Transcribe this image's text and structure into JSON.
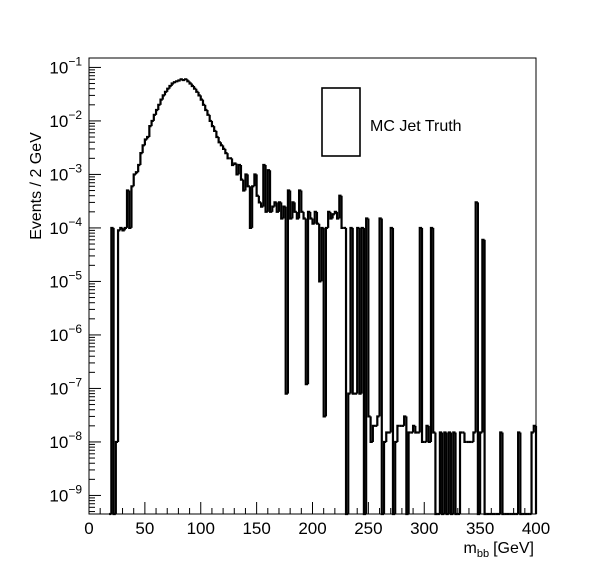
{
  "chart_data": {
    "type": "histogram",
    "xlabel": "m",
    "xlabel_sub": "bb",
    "xlabel_unit": "[GeV]",
    "ylabel": "Events / 2 GeV",
    "xlim": [
      0,
      400
    ],
    "ylim": [
      4.5e-10,
      0.15
    ],
    "y_scale": "log",
    "grid": false,
    "bin_width": 2,
    "x_ticks": [
      0,
      50,
      100,
      150,
      200,
      250,
      300,
      350,
      400
    ],
    "y_tick_exponents": [
      -9,
      -8,
      -7,
      -6,
      -5,
      -4,
      -3,
      -2,
      -1
    ],
    "y_tick_base": "10",
    "legend": {
      "placement": "top-center",
      "entries": [
        {
          "label": "MC Jet Truth",
          "style": "box"
        }
      ]
    },
    "series": [
      {
        "name": "MC Jet Truth",
        "color": "#000000",
        "bins": [
          [
            18,
            20,
            0
          ],
          [
            20,
            22,
            0.0001
          ],
          [
            22,
            24,
            0
          ],
          [
            24,
            26,
            1e-08
          ],
          [
            26,
            28,
            9e-05
          ],
          [
            28,
            30,
            0.0001
          ],
          [
            30,
            32,
            9e-05
          ],
          [
            32,
            34,
            0.0001
          ],
          [
            34,
            36,
            0.0005
          ],
          [
            36,
            38,
            0.0001
          ],
          [
            38,
            40,
            0.0006
          ],
          [
            40,
            42,
            0.001
          ],
          [
            42,
            44,
            0.0011
          ],
          [
            44,
            46,
            0.0015
          ],
          [
            46,
            48,
            0.0025
          ],
          [
            48,
            50,
            0.0035
          ],
          [
            50,
            52,
            0.0045
          ],
          [
            52,
            54,
            0.005
          ],
          [
            54,
            56,
            0.008
          ],
          [
            56,
            58,
            0.01
          ],
          [
            58,
            60,
            0.013
          ],
          [
            60,
            62,
            0.016
          ],
          [
            62,
            64,
            0.02
          ],
          [
            64,
            66,
            0.025
          ],
          [
            66,
            68,
            0.03
          ],
          [
            68,
            70,
            0.035
          ],
          [
            70,
            72,
            0.04
          ],
          [
            72,
            74,
            0.045
          ],
          [
            74,
            76,
            0.05
          ],
          [
            76,
            78,
            0.053
          ],
          [
            78,
            80,
            0.055
          ],
          [
            80,
            82,
            0.057
          ],
          [
            82,
            84,
            0.06
          ],
          [
            84,
            86,
            0.058
          ],
          [
            86,
            88,
            0.06
          ],
          [
            88,
            90,
            0.055
          ],
          [
            90,
            92,
            0.05
          ],
          [
            92,
            94,
            0.045
          ],
          [
            94,
            96,
            0.04
          ],
          [
            96,
            98,
            0.035
          ],
          [
            98,
            100,
            0.03
          ],
          [
            100,
            102,
            0.025
          ],
          [
            102,
            104,
            0.02
          ],
          [
            104,
            106,
            0.016
          ],
          [
            106,
            108,
            0.013
          ],
          [
            108,
            110,
            0.01
          ],
          [
            110,
            112,
            0.008
          ],
          [
            112,
            114,
            0.0065
          ],
          [
            114,
            116,
            0.005
          ],
          [
            116,
            118,
            0.004
          ],
          [
            118,
            120,
            0.0035
          ],
          [
            120,
            122,
            0.003
          ],
          [
            122,
            124,
            0.0025
          ],
          [
            124,
            126,
            0.002
          ],
          [
            126,
            128,
            0.002
          ],
          [
            128,
            130,
            0.0015
          ],
          [
            130,
            132,
            0.0016
          ],
          [
            132,
            134,
            0.001
          ],
          [
            134,
            136,
            0.0015
          ],
          [
            136,
            138,
            0.0008
          ],
          [
            138,
            140,
            0.0005
          ],
          [
            140,
            142,
            0.001
          ],
          [
            142,
            144,
            0.0006
          ],
          [
            144,
            146,
            0.0001
          ],
          [
            146,
            148,
            0.0006
          ],
          [
            148,
            150,
            0.001
          ],
          [
            150,
            152,
            0.0004
          ],
          [
            152,
            154,
            0.0003
          ],
          [
            154,
            156,
            0.00025
          ],
          [
            156,
            158,
            0.0015
          ],
          [
            158,
            160,
            0.0002
          ],
          [
            160,
            162,
            0.0012
          ],
          [
            162,
            164,
            0.0002
          ],
          [
            164,
            166,
            0.00025
          ],
          [
            166,
            168,
            0.0003
          ],
          [
            168,
            170,
            0.0002
          ],
          [
            170,
            172,
            0.0003
          ],
          [
            172,
            174,
            0.00015
          ],
          [
            174,
            176,
            0.00025
          ],
          [
            176,
            178,
            8e-08
          ],
          [
            178,
            180,
            0.0005
          ],
          [
            180,
            182,
            0.00015
          ],
          [
            182,
            184,
            0.0003
          ],
          [
            184,
            186,
            0.0002
          ],
          [
            186,
            188,
            0.00015
          ],
          [
            188,
            190,
            0.0005
          ],
          [
            190,
            192,
            0.0002
          ],
          [
            192,
            194,
            0.00015
          ],
          [
            194,
            196,
            1.2e-07
          ],
          [
            196,
            198,
            0.0002
          ],
          [
            198,
            200,
            0.00015
          ],
          [
            200,
            202,
            0.00012
          ],
          [
            202,
            204,
            0.0002
          ],
          [
            204,
            206,
            0.00012
          ],
          [
            206,
            208,
            1e-05
          ],
          [
            208,
            210,
            0.0001
          ],
          [
            210,
            212,
            3e-08
          ],
          [
            212,
            214,
            0.0001
          ],
          [
            214,
            216,
            0.0002
          ],
          [
            216,
            218,
            0.00015
          ],
          [
            218,
            220,
            0.00018
          ],
          [
            220,
            222,
            0.0002
          ],
          [
            222,
            224,
            0.00015
          ],
          [
            224,
            226,
            0.0004
          ],
          [
            226,
            228,
            0.0001
          ],
          [
            228,
            230,
            0.0001
          ],
          [
            230,
            232,
            0
          ],
          [
            232,
            234,
            8e-08
          ],
          [
            234,
            236,
            0.0001
          ],
          [
            236,
            238,
            8e-08
          ],
          [
            238,
            240,
            8e-08
          ],
          [
            240,
            242,
            0.0001
          ],
          [
            242,
            244,
            8e-08
          ],
          [
            244,
            246,
            0.0001
          ],
          [
            246,
            248,
            0
          ],
          [
            248,
            250,
            0.00015
          ],
          [
            250,
            252,
            3e-08
          ],
          [
            252,
            254,
            1e-08
          ],
          [
            254,
            256,
            2e-08
          ],
          [
            256,
            258,
            2e-08
          ],
          [
            258,
            260,
            3e-08
          ],
          [
            260,
            262,
            0.00015
          ],
          [
            262,
            264,
            0
          ],
          [
            264,
            266,
            1e-08
          ],
          [
            266,
            268,
            1.5e-08
          ],
          [
            268,
            270,
            1.5e-08
          ],
          [
            270,
            272,
            0.0001
          ],
          [
            272,
            274,
            0
          ],
          [
            274,
            276,
            1e-08
          ],
          [
            276,
            278,
            2e-08
          ],
          [
            278,
            280,
            2e-08
          ],
          [
            280,
            282,
            2e-08
          ],
          [
            282,
            284,
            3e-08
          ],
          [
            284,
            286,
            0
          ],
          [
            286,
            288,
            1.5e-08
          ],
          [
            288,
            290,
            1.5e-08
          ],
          [
            290,
            292,
            2e-08
          ],
          [
            292,
            294,
            1.5e-08
          ],
          [
            294,
            296,
            1.5e-08
          ],
          [
            296,
            298,
            0.0001
          ],
          [
            298,
            300,
            1e-08
          ],
          [
            300,
            302,
            1e-08
          ],
          [
            302,
            304,
            2e-08
          ],
          [
            304,
            306,
            1e-08
          ],
          [
            306,
            308,
            0.0001
          ],
          [
            308,
            310,
            1.5e-08
          ],
          [
            310,
            312,
            0
          ],
          [
            312,
            314,
            0
          ],
          [
            314,
            316,
            1.5e-08
          ],
          [
            316,
            318,
            0
          ],
          [
            318,
            320,
            1.5e-08
          ],
          [
            320,
            322,
            0
          ],
          [
            322,
            324,
            1.5e-08
          ],
          [
            324,
            326,
            0
          ],
          [
            326,
            328,
            1.5e-08
          ],
          [
            328,
            330,
            0
          ],
          [
            330,
            332,
            0
          ],
          [
            332,
            334,
            1.5e-08
          ],
          [
            334,
            336,
            1.5e-08
          ],
          [
            336,
            338,
            1e-08
          ],
          [
            338,
            340,
            1e-08
          ],
          [
            340,
            342,
            1e-08
          ],
          [
            342,
            344,
            1e-08
          ],
          [
            344,
            346,
            1.5e-08
          ],
          [
            346,
            348,
            0.0003
          ],
          [
            348,
            350,
            0
          ],
          [
            350,
            352,
            1.5e-08
          ],
          [
            352,
            354,
            6e-05
          ],
          [
            354,
            356,
            0
          ],
          [
            356,
            358,
            0
          ],
          [
            358,
            360,
            0
          ],
          [
            360,
            362,
            0
          ],
          [
            362,
            364,
            0
          ],
          [
            364,
            366,
            0
          ],
          [
            366,
            368,
            0
          ],
          [
            368,
            370,
            1.5e-08
          ],
          [
            370,
            372,
            0
          ],
          [
            372,
            374,
            0
          ],
          [
            374,
            376,
            0
          ],
          [
            376,
            378,
            0
          ],
          [
            378,
            380,
            0
          ],
          [
            380,
            382,
            0
          ],
          [
            382,
            384,
            0
          ],
          [
            384,
            386,
            1.5e-08
          ],
          [
            386,
            388,
            0
          ],
          [
            388,
            390,
            0
          ],
          [
            390,
            392,
            0
          ],
          [
            392,
            394,
            0
          ],
          [
            394,
            396,
            0
          ],
          [
            396,
            398,
            1.5e-08
          ],
          [
            398,
            400,
            2e-08
          ]
        ]
      }
    ]
  }
}
